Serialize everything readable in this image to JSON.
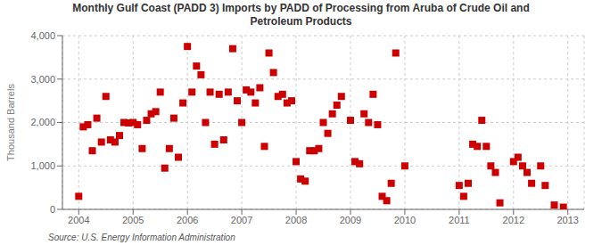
{
  "chart_data": {
    "type": "scatter",
    "title": "Monthly Gulf Coast (PADD 3) Imports by PADD of Processing from Aruba of Crude Oil and\nPetroleum Products",
    "ylabel": "Thousand Barrels",
    "annotations": [
      "Source: U.S. Energy Information Administration"
    ],
    "color": "#cc0000",
    "marker": "square",
    "xlim": [
      2003.7,
      2013.3
    ],
    "ylim": [
      0,
      4000
    ],
    "xticks": [
      2004,
      2005,
      2006,
      2007,
      2008,
      2009,
      2010,
      2011,
      2012,
      2013
    ],
    "yticks": [
      0,
      {
        "value": 1000,
        "label": "1,000"
      },
      {
        "value": 2000,
        "label": "2,000"
      },
      {
        "value": 3000,
        "label": "3,000"
      },
      {
        "value": 4000,
        "label": "4,000"
      }
    ],
    "grid": true,
    "x": [
      2004.0,
      2004.083,
      2004.167,
      2004.25,
      2004.333,
      2004.417,
      2004.5,
      2004.583,
      2004.667,
      2004.75,
      2004.833,
      2004.917,
      2005.0,
      2005.083,
      2005.167,
      2005.25,
      2005.333,
      2005.417,
      2005.5,
      2005.583,
      2005.667,
      2005.75,
      2005.833,
      2005.917,
      2006.0,
      2006.083,
      2006.167,
      2006.25,
      2006.333,
      2006.417,
      2006.5,
      2006.583,
      2006.667,
      2006.75,
      2006.833,
      2006.917,
      2007.0,
      2007.083,
      2007.167,
      2007.25,
      2007.333,
      2007.417,
      2007.5,
      2007.583,
      2007.667,
      2007.75,
      2007.833,
      2007.917,
      2008.0,
      2008.083,
      2008.167,
      2008.25,
      2008.333,
      2008.417,
      2008.5,
      2008.583,
      2008.667,
      2008.75,
      2008.833,
      2009.0,
      2009.083,
      2009.167,
      2009.25,
      2009.333,
      2009.417,
      2009.5,
      2009.583,
      2009.667,
      2009.75,
      2009.833,
      2010.0,
      2011.0,
      2011.083,
      2011.167,
      2011.25,
      2011.333,
      2011.417,
      2011.5,
      2011.583,
      2011.667,
      2011.75,
      2012.0,
      2012.083,
      2012.167,
      2012.25,
      2012.333,
      2012.5,
      2012.583,
      2012.75,
      2012.917
    ],
    "values": [
      300,
      1900,
      1950,
      1350,
      2100,
      1550,
      2600,
      1600,
      1550,
      1700,
      2000,
      1990,
      2000,
      1950,
      1400,
      2050,
      2200,
      2250,
      2700,
      950,
      1400,
      2100,
      1200,
      2450,
      3750,
      2700,
      3300,
      3100,
      2000,
      2700,
      1500,
      2650,
      1600,
      2700,
      3700,
      2500,
      2000,
      2750,
      2700,
      2450,
      2800,
      1450,
      3600,
      3150,
      2600,
      2650,
      2450,
      2500,
      1100,
      700,
      650,
      1350,
      1350,
      1400,
      2000,
      1750,
      2200,
      2400,
      2600,
      2050,
      1100,
      1050,
      2200,
      2000,
      2650,
      1950,
      300,
      200,
      600,
      3600,
      1000,
      550,
      300,
      600,
      1500,
      1450,
      2050,
      1450,
      1000,
      850,
      150,
      1100,
      1200,
      1000,
      850,
      600,
      1000,
      550,
      100,
      50
    ]
  }
}
